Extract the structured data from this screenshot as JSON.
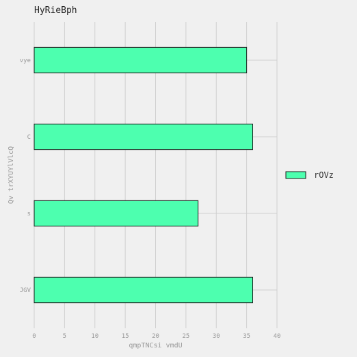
{
  "chart_data": {
    "type": "bar",
    "orientation": "horizontal",
    "title": "HyRieBph",
    "xlabel": "qmpTNCsi vmdU",
    "ylabel": "Qv trXYUYlVlcQ",
    "categories": [
      "vye",
      "C",
      "s",
      "JGV"
    ],
    "series": [
      {
        "name": "rOVz",
        "values": [
          35,
          36,
          27,
          36
        ],
        "color": "#4dffaf"
      }
    ],
    "xlim": [
      0,
      40
    ],
    "xticks": [
      0,
      5,
      10,
      15,
      20,
      25,
      30,
      35,
      40
    ],
    "grid": true,
    "legend_position": "right"
  }
}
